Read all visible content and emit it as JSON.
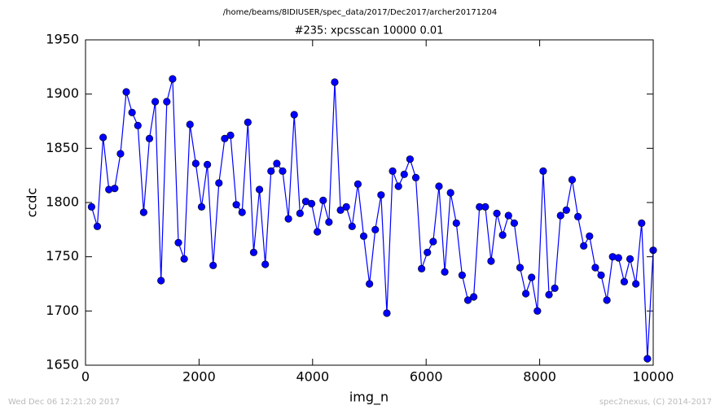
{
  "chart_data": {
    "type": "line",
    "suptitle": "/home/beams/8IDIUSER/spec_data/2017/Dec2017/archer20171204",
    "title": "#235: xpcsscan 10000 0.01",
    "x_label": "img_n",
    "y_label": "ccdc",
    "footer_left": "Wed Dec 06 12:21:20 2017",
    "footer_right": "spec2nexus, (C) 2014-2017",
    "x": [
      106,
      208,
      310,
      412,
      514,
      616,
      718,
      820,
      922,
      1024,
      1126,
      1228,
      1330,
      1432,
      1534,
      1636,
      1738,
      1840,
      1942,
      2044,
      2146,
      2248,
      2350,
      2452,
      2554,
      2656,
      2758,
      2860,
      2962,
      3064,
      3166,
      3268,
      3370,
      3472,
      3574,
      3676,
      3778,
      3880,
      3982,
      4084,
      4186,
      4288,
      4390,
      4492,
      4594,
      4696,
      4798,
      4900,
      5002,
      5104,
      5206,
      5308,
      5410,
      5512,
      5614,
      5716,
      5818,
      5920,
      6022,
      6124,
      6226,
      6328,
      6430,
      6532,
      6634,
      6736,
      6838,
      6940,
      7042,
      7144,
      7246,
      7348,
      7450,
      7552,
      7654,
      7756,
      7858,
      7960,
      8062,
      8164,
      8266,
      8368,
      8470,
      8572,
      8674,
      8776,
      8878,
      8980,
      9082,
      9184,
      9286,
      9388,
      9490,
      9592,
      9694,
      9796,
      9898,
      10000
    ],
    "series": [
      {
        "color": "#0000ff",
        "values": [
          1796,
          1778,
          1860,
          1812,
          1813,
          1845,
          1902,
          1883,
          1871,
          1791,
          1859,
          1893,
          1728,
          1893,
          1914,
          1763,
          1748,
          1872,
          1836,
          1796,
          1835,
          1742,
          1818,
          1859,
          1862,
          1798,
          1791,
          1874,
          1754,
          1812,
          1743,
          1829,
          1836,
          1829,
          1785,
          1881,
          1790,
          1801,
          1799,
          1773,
          1802,
          1782,
          1911,
          1793,
          1796,
          1778,
          1817,
          1769,
          1725,
          1775,
          1807,
          1698,
          1829,
          1815,
          1826,
          1840,
          1823,
          1739,
          1754,
          1764,
          1815,
          1736,
          1809,
          1781,
          1733,
          1710,
          1713,
          1796,
          1796,
          1746,
          1790,
          1770,
          1788,
          1781,
          1740,
          1716,
          1731,
          1700,
          1829,
          1715,
          1721,
          1788,
          1793,
          1821,
          1787,
          1760,
          1769,
          1740,
          1733,
          1710,
          1750,
          1749,
          1727,
          1748,
          1725,
          1781,
          1656,
          1756
        ]
      }
    ],
    "xlim": [
      0,
      10000
    ],
    "xticks": [
      0,
      2000,
      4000,
      6000,
      8000,
      10000
    ],
    "ylim": [
      1650,
      1950
    ],
    "yticks": [
      1650,
      1700,
      1750,
      1800,
      1850,
      1900,
      1950
    ]
  }
}
